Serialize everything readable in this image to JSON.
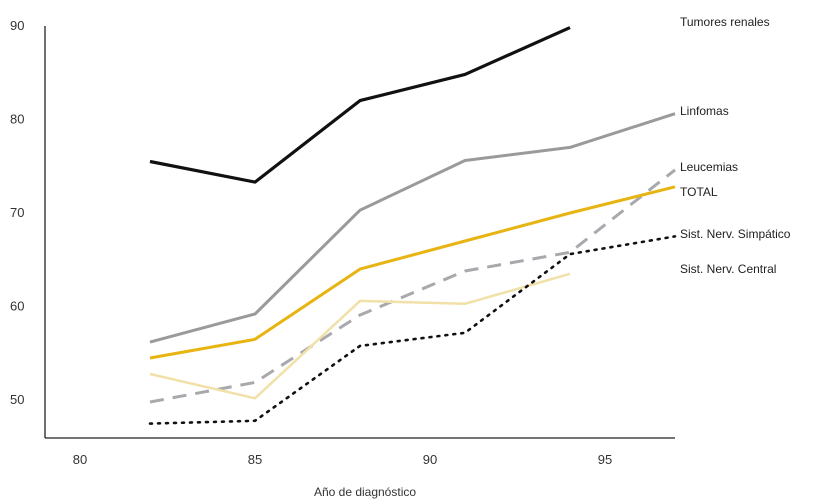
{
  "chart_data": {
    "type": "line",
    "title": "",
    "xlabel": "Año de diagnóstico",
    "ylabel": "",
    "xlim": [
      79,
      97
    ],
    "ylim": [
      46,
      91
    ],
    "xticks": [
      80,
      85,
      90,
      95
    ],
    "yticks": [
      50,
      60,
      70,
      80,
      90
    ],
    "grid": false,
    "legend": "right",
    "series": [
      {
        "name": "Tumores renales",
        "color": "#111111",
        "dash": "",
        "width": 3.2,
        "x": [
          82,
          85,
          88,
          91,
          94
        ],
        "y": [
          75.5,
          73.3,
          82,
          84.8,
          89.8
        ]
      },
      {
        "name": "Linfomas",
        "color": "#9a9a9a",
        "dash": "",
        "width": 3,
        "x": [
          82,
          85,
          88,
          91,
          94,
          97
        ],
        "y": [
          56.2,
          59.2,
          70.3,
          75.6,
          77,
          80.6
        ]
      },
      {
        "name": "Leucemias",
        "color": "#a8a8ad",
        "dash": "14 9",
        "width": 3,
        "x": [
          82,
          85,
          88,
          91,
          94,
          97
        ],
        "y": [
          49.8,
          51.9,
          59.1,
          63.8,
          65.8,
          74.6
        ]
      },
      {
        "name": "TOTAL",
        "color": "#e8b412",
        "dash": "",
        "width": 3,
        "x": [
          82,
          85,
          88,
          91,
          94,
          97
        ],
        "y": [
          54.5,
          56.5,
          64,
          67,
          70,
          72.8
        ]
      },
      {
        "name": "Sist. Nerv. Simpático",
        "color": "#f1e0a8",
        "dash": "",
        "width": 2.5,
        "x": [
          82,
          85,
          88,
          91,
          94
        ],
        "y": [
          52.8,
          50.2,
          60.6,
          60.3,
          63.5
        ]
      },
      {
        "name": "Sist. Nerv. Central",
        "color": "#111111",
        "dash": "2 6",
        "width": 2.6,
        "x": [
          82,
          85,
          88,
          91,
          94,
          97
        ],
        "y": [
          47.5,
          47.8,
          55.8,
          57.2,
          65.6,
          67.5
        ]
      }
    ]
  }
}
